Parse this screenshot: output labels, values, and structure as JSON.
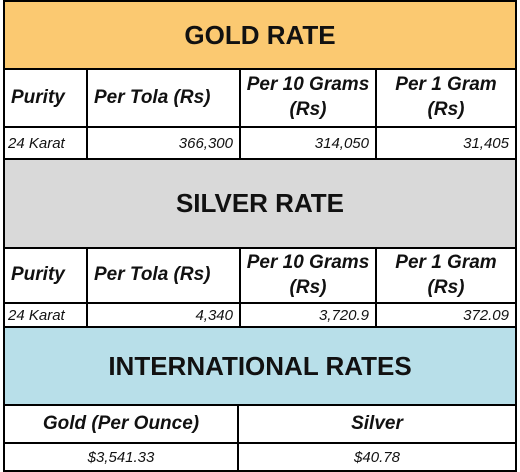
{
  "gold": {
    "title": "GOLD RATE",
    "headers": [
      "Purity",
      "Per Tola (Rs)",
      "Per 10 Grams (Rs)",
      "Per 1 Gram (Rs)"
    ],
    "row": [
      "24 Karat",
      "366,300",
      "314,050",
      "31,405"
    ]
  },
  "silver": {
    "title": "SILVER RATE",
    "headers": [
      "Purity",
      "Per Tola (Rs)",
      "Per 10 Grams (Rs)",
      "Per 1 Gram (Rs)"
    ],
    "row": [
      "24 Karat",
      "4,340",
      "3,720.9",
      "372.09"
    ]
  },
  "international": {
    "title": "INTERNATIONAL RATES",
    "headers": [
      "Gold (Per Ounce)",
      "Silver"
    ],
    "values": [
      "$3,541.33",
      "$40.78"
    ]
  },
  "colors": {
    "gold_banner": "#fbc971",
    "silver_banner": "#d9d9d9",
    "international_banner": "#b8dfe9"
  }
}
